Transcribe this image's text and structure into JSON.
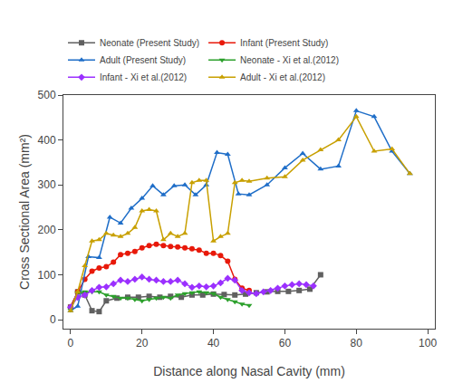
{
  "chart_data": {
    "type": "line",
    "xlabel": "Distance along Nasal Cavity (mm)",
    "ylabel": "Cross Sectional Area (mm²)",
    "xlim": [
      -2,
      102
    ],
    "ylim": [
      -20,
      500
    ],
    "xticks": [
      0,
      20,
      40,
      60,
      80,
      100
    ],
    "yticks": [
      0,
      100,
      200,
      300,
      400,
      500
    ],
    "grid": false,
    "legend": "upper left",
    "series": [
      {
        "name": "Neonate (Present Study)",
        "color": "#606060",
        "marker": "square",
        "x": [
          0,
          2,
          4,
          6,
          8,
          10,
          13,
          16,
          19,
          22,
          25,
          28,
          31,
          34,
          37,
          40,
          43,
          46,
          49,
          52,
          55,
          58,
          61,
          64,
          67,
          70
        ],
        "values": [
          28,
          62,
          55,
          20,
          18,
          42,
          48,
          50,
          50,
          52,
          50,
          52,
          50,
          55,
          55,
          57,
          56,
          55,
          57,
          60,
          62,
          63,
          63,
          65,
          68,
          100
        ]
      },
      {
        "name": "Infant (Present Study)",
        "color": "#e8190a",
        "marker": "circle",
        "x": [
          0,
          2,
          4,
          6,
          8,
          10,
          12,
          14,
          16,
          18,
          20,
          22,
          24,
          26,
          28,
          30,
          32,
          34,
          36,
          38,
          40,
          42,
          44,
          46,
          48,
          50
        ],
        "values": [
          28,
          62,
          90,
          108,
          115,
          118,
          128,
          145,
          148,
          152,
          160,
          165,
          168,
          165,
          163,
          162,
          160,
          158,
          155,
          148,
          148,
          143,
          130,
          90,
          70,
          65
        ]
      },
      {
        "name": "Adult (Present Study)",
        "color": "#1f6ec8",
        "marker": "triangle-up",
        "x": [
          0,
          2,
          5,
          8,
          11,
          14,
          17,
          20,
          23,
          26,
          29,
          32,
          35,
          38,
          41,
          44,
          47,
          50,
          55,
          60,
          65,
          70,
          75,
          80,
          85,
          90,
          95
        ],
        "values": [
          20,
          30,
          140,
          138,
          228,
          215,
          248,
          270,
          298,
          278,
          298,
          300,
          278,
          300,
          372,
          368,
          280,
          278,
          300,
          338,
          370,
          335,
          342,
          465,
          452,
          375,
          325
        ]
      },
      {
        "name": "Neonate - Xi et al.(2012)",
        "color": "#2ca02c",
        "marker": "triangle-down",
        "x": [
          0,
          2,
          4,
          6,
          8,
          10,
          12,
          14,
          16,
          18,
          20,
          22,
          24,
          26,
          28,
          30,
          32,
          34,
          36,
          38,
          40,
          42,
          44,
          46,
          48,
          50
        ],
        "values": [
          22,
          60,
          62,
          62,
          62,
          55,
          52,
          48,
          48,
          45,
          42,
          45,
          48,
          50,
          48,
          55,
          58,
          60,
          62,
          60,
          58,
          50,
          45,
          40,
          35,
          32
        ]
      },
      {
        "name": "Infant - Xi et al.(2012)",
        "color": "#9b30ff",
        "marker": "diamond",
        "x": [
          0,
          2,
          4,
          6,
          8,
          10,
          12,
          14,
          16,
          18,
          20,
          22,
          24,
          26,
          28,
          30,
          32,
          34,
          36,
          38,
          40,
          42,
          44,
          46,
          48,
          50,
          52,
          54,
          56,
          58,
          60,
          62,
          64,
          66,
          68
        ],
        "values": [
          28,
          50,
          55,
          65,
          72,
          73,
          80,
          88,
          85,
          90,
          95,
          90,
          88,
          85,
          85,
          88,
          80,
          72,
          75,
          73,
          75,
          82,
          92,
          88,
          65,
          60,
          58,
          62,
          65,
          70,
          75,
          78,
          80,
          78,
          75
        ]
      },
      {
        "name": "Adult - Xi et al.(2012)",
        "color": "#c8a000",
        "marker": "triangle-up",
        "x": [
          0,
          2,
          4,
          6,
          8,
          10,
          12,
          14,
          16,
          18,
          20,
          22,
          24,
          26,
          28,
          30,
          32,
          34,
          36,
          38,
          40,
          42,
          44,
          46,
          48,
          50,
          55,
          60,
          65,
          70,
          75,
          80,
          85,
          90,
          95
        ],
        "values": [
          20,
          62,
          120,
          175,
          178,
          192,
          188,
          185,
          192,
          205,
          242,
          245,
          242,
          178,
          192,
          185,
          192,
          305,
          310,
          310,
          175,
          185,
          192,
          305,
          310,
          308,
          315,
          318,
          355,
          378,
          400,
          452,
          375,
          380,
          325
        ]
      }
    ]
  }
}
